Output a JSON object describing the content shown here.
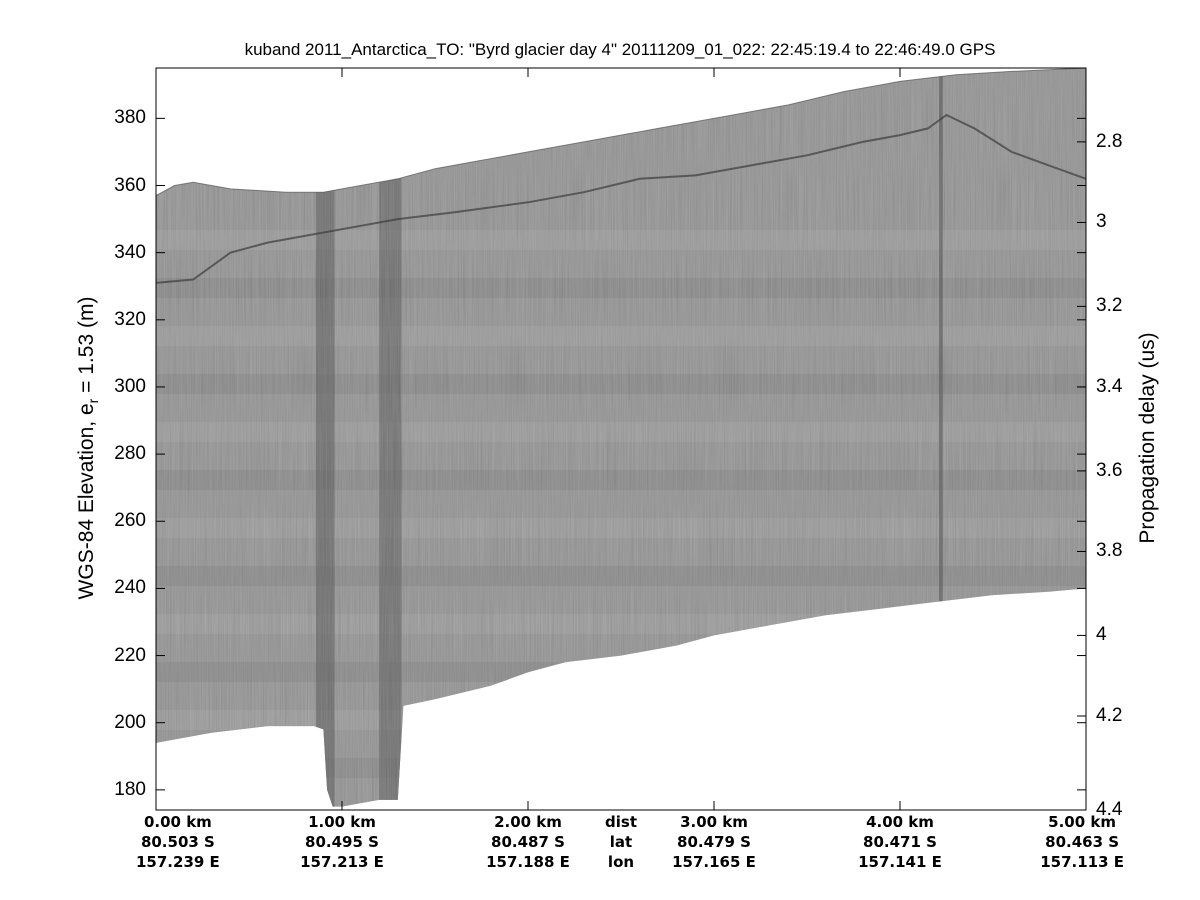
{
  "chart_data": {
    "type": "heatmap",
    "title": "kuband 2011_Antarctica_TO: \"Byrd glacier day 4\"  20111209_01_022: 22:45:19.4 to 22:46:49.0 GPS",
    "ylabel": "WGS-84 Elevation, e",
    "ylabel_subscript": "r",
    "ylabel_suffix": " = 1.53 (m)",
    "y2label": "Propagation delay (us)",
    "ylim": [
      174,
      395
    ],
    "y_ticks": [
      180,
      200,
      220,
      240,
      260,
      280,
      300,
      320,
      340,
      360,
      380
    ],
    "y2_ticks": [
      {
        "label": "2.8",
        "elev": 373
      },
      {
        "label": "3",
        "elev": 349
      },
      {
        "label": "3.2",
        "elev": 324
      },
      {
        "label": "3.4",
        "elev": 300
      },
      {
        "label": "3.6",
        "elev": 275
      },
      {
        "label": "3.8",
        "elev": 251
      },
      {
        "label": "4",
        "elev": 226
      },
      {
        "label": "4.2",
        "elev": 202
      },
      {
        "label": "4.4",
        "elev": 174
      }
    ],
    "xlim": [
      0,
      5
    ],
    "x_ticks": [
      {
        "dist": "0.00 km",
        "lat": "80.503 S",
        "lon": "157.239 E",
        "x": 0.0
      },
      {
        "dist": "1.00 km",
        "lat": "80.495 S",
        "lon": "157.213 E",
        "x": 1.0
      },
      {
        "dist": "2.00 km",
        "lat": "80.487 S",
        "lon": "157.188 E",
        "x": 2.0
      },
      {
        "dist": "dist",
        "lat": "lat",
        "lon": "lon",
        "x": 2.5
      },
      {
        "dist": "3.00 km",
        "lat": "80.479 S",
        "lon": "157.165 E",
        "x": 3.0
      },
      {
        "dist": "4.00 km",
        "lat": "80.471 S",
        "lon": "157.141 E",
        "x": 4.0
      },
      {
        "dist": "5.00 km",
        "lat": "80.463 S",
        "lon": "157.113 E",
        "x": 5.0
      }
    ],
    "surface_elevation_km_m": [
      [
        0.0,
        357
      ],
      [
        0.1,
        360
      ],
      [
        0.2,
        361
      ],
      [
        0.4,
        359
      ],
      [
        0.7,
        358
      ],
      [
        0.9,
        358
      ],
      [
        1.1,
        360
      ],
      [
        1.3,
        362
      ],
      [
        1.5,
        365
      ],
      [
        1.7,
        367
      ],
      [
        2.0,
        370
      ],
      [
        2.4,
        374
      ],
      [
        2.7,
        377
      ],
      [
        3.0,
        380
      ],
      [
        3.4,
        384
      ],
      [
        3.7,
        388
      ],
      [
        4.0,
        391
      ],
      [
        4.3,
        393
      ],
      [
        4.6,
        394
      ],
      [
        5.0,
        395
      ]
    ],
    "bottom_elevation_km_m": [
      [
        0.0,
        194
      ],
      [
        0.3,
        197
      ],
      [
        0.6,
        199
      ],
      [
        0.85,
        199
      ],
      [
        0.9,
        198
      ],
      [
        0.92,
        180
      ],
      [
        0.95,
        175
      ],
      [
        1.0,
        175
      ],
      [
        1.1,
        176
      ],
      [
        1.2,
        177
      ],
      [
        1.3,
        177
      ],
      [
        1.33,
        205
      ],
      [
        1.5,
        207
      ],
      [
        1.8,
        211
      ],
      [
        2.0,
        215
      ],
      [
        2.2,
        218
      ],
      [
        2.5,
        220
      ],
      [
        2.8,
        223
      ],
      [
        3.0,
        226
      ],
      [
        3.3,
        229
      ],
      [
        3.6,
        232
      ],
      [
        3.9,
        234
      ],
      [
        4.2,
        236
      ],
      [
        4.5,
        238
      ],
      [
        4.8,
        239
      ],
      [
        5.0,
        240
      ]
    ],
    "internal_layer_km_m": [
      [
        0.0,
        331
      ],
      [
        0.2,
        332
      ],
      [
        0.4,
        340
      ],
      [
        0.6,
        343
      ],
      [
        0.8,
        345
      ],
      [
        1.0,
        347
      ],
      [
        1.3,
        350
      ],
      [
        1.6,
        352
      ],
      [
        2.0,
        355
      ],
      [
        2.3,
        358
      ],
      [
        2.6,
        362
      ],
      [
        2.9,
        363
      ],
      [
        3.2,
        366
      ],
      [
        3.5,
        369
      ],
      [
        3.8,
        373
      ],
      [
        4.0,
        375
      ],
      [
        4.15,
        377
      ],
      [
        4.25,
        381
      ],
      [
        4.4,
        377
      ],
      [
        4.6,
        370
      ],
      [
        4.8,
        366
      ],
      [
        5.0,
        362
      ]
    ],
    "colormap": "gray"
  }
}
